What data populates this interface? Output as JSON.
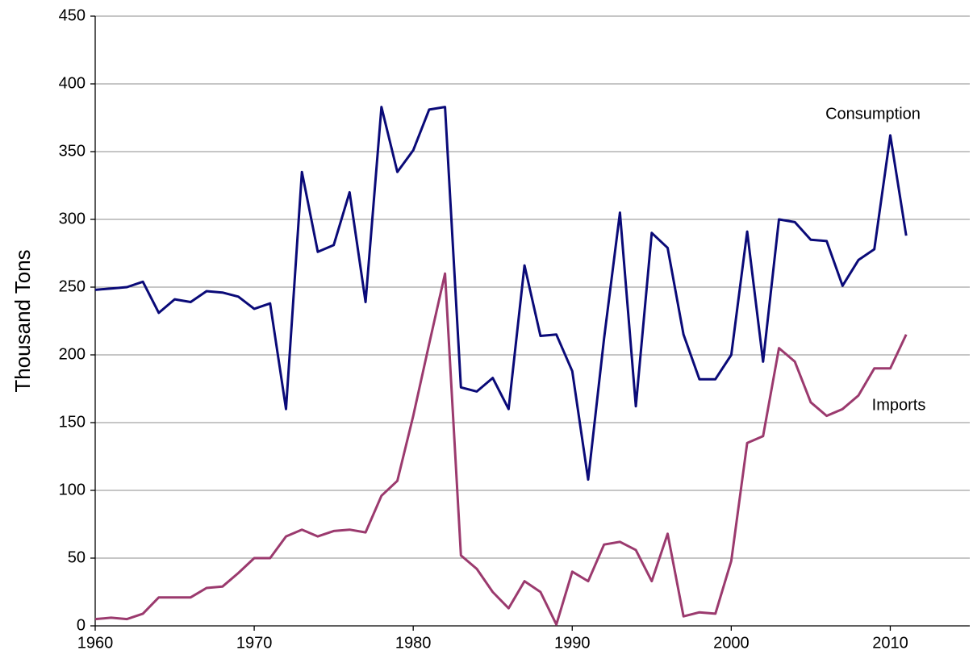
{
  "chart_data": {
    "type": "line",
    "y_label": "Thousand Tons",
    "x": [
      1960,
      1961,
      1962,
      1963,
      1964,
      1965,
      1966,
      1967,
      1968,
      1969,
      1970,
      1971,
      1972,
      1973,
      1974,
      1975,
      1976,
      1977,
      1978,
      1979,
      1980,
      1981,
      1982,
      1983,
      1984,
      1985,
      1986,
      1987,
      1988,
      1989,
      1990,
      1991,
      1992,
      1993,
      1994,
      1995,
      1996,
      1997,
      1998,
      1999,
      2000,
      2001,
      2002,
      2003,
      2004,
      2005,
      2006,
      2007,
      2008,
      2009,
      2010,
      2011
    ],
    "series": [
      {
        "name": "Consumption",
        "color": "#0a0a78",
        "values": [
          248,
          249,
          250,
          254,
          231,
          241,
          239,
          247,
          246,
          243,
          234,
          238,
          160,
          335,
          276,
          281,
          320,
          239,
          383,
          335,
          351,
          381,
          383,
          176,
          173,
          183,
          160,
          266,
          214,
          215,
          188,
          108,
          212,
          305,
          162,
          290,
          279,
          215,
          182,
          182,
          200,
          291,
          195,
          300,
          298,
          285,
          284,
          251,
          270,
          278,
          362,
          288
        ]
      },
      {
        "name": "Imports",
        "color": "#9b3a6e",
        "values": [
          5,
          6,
          5,
          9,
          21,
          21,
          21,
          28,
          29,
          39,
          50,
          50,
          66,
          71,
          66,
          70,
          71,
          69,
          96,
          107,
          155,
          208,
          260,
          52,
          42,
          25,
          13,
          33,
          25,
          1,
          40,
          33,
          60,
          62,
          56,
          33,
          68,
          7,
          10,
          9,
          48,
          135,
          140,
          205,
          195,
          165,
          155,
          160,
          170,
          190,
          190,
          215
        ]
      }
    ],
    "xlim": [
      1960,
      2015
    ],
    "xticks": [
      1960,
      1970,
      1980,
      1990,
      2000,
      2010
    ],
    "ylim": [
      0,
      450
    ],
    "yticks": [
      0,
      50,
      100,
      150,
      200,
      250,
      300,
      350,
      400,
      450
    ],
    "grid": true
  }
}
